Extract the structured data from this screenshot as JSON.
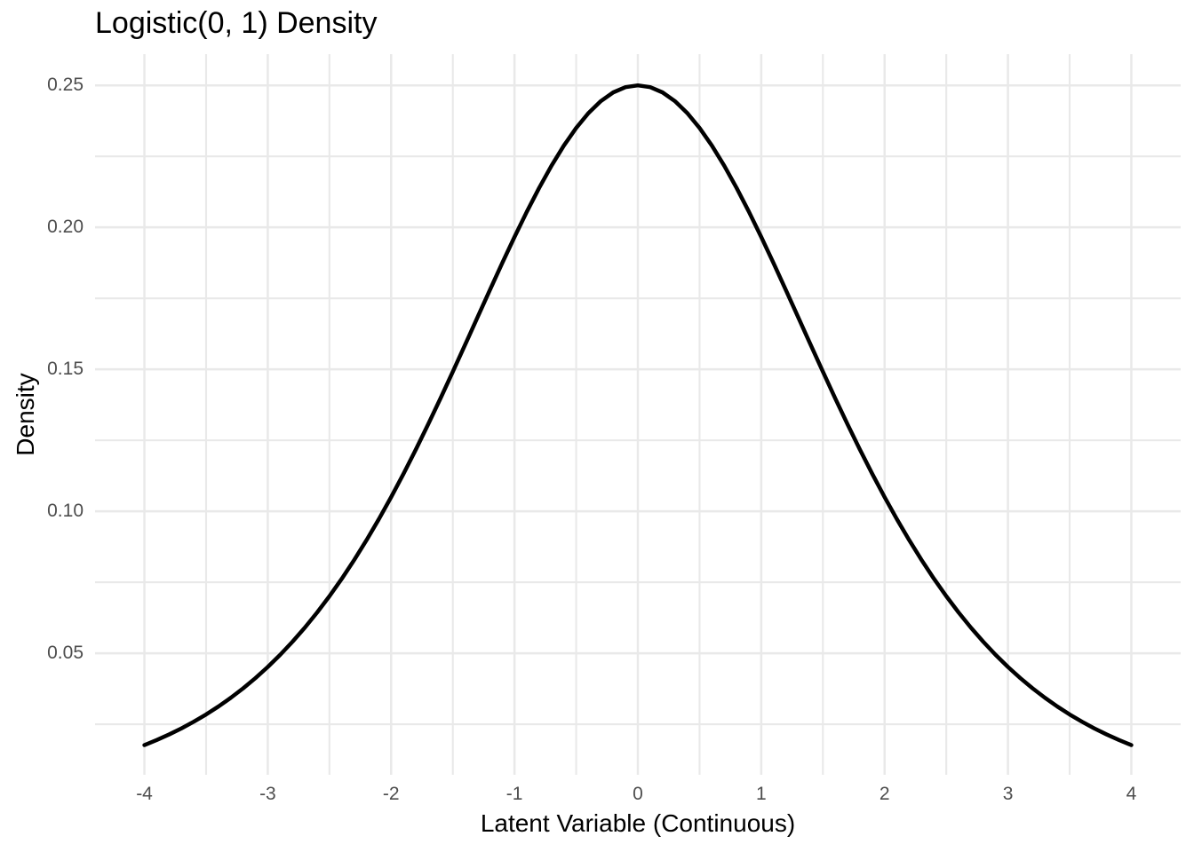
{
  "chart_data": {
    "type": "line",
    "title": "Logistic(0, 1) Density",
    "xlabel": "Latent Variable (Continuous)",
    "ylabel": "Density",
    "legend": "none",
    "grid": "major-and-minor",
    "background": "#ffffff",
    "x_range": [
      -4.4,
      4.4
    ],
    "y_range": [
      0.0072,
      0.261
    ],
    "x_ticks": {
      "values": [
        -4,
        -3,
        -2,
        -1,
        0,
        1,
        2,
        3,
        4
      ],
      "labels": [
        "-4",
        "-3",
        "-2",
        "-1",
        "0",
        "1",
        "2",
        "3",
        "4"
      ]
    },
    "x_minor": [
      -3.5,
      -2.5,
      -1.5,
      -0.5,
      0.5,
      1.5,
      2.5,
      3.5
    ],
    "y_ticks": {
      "values": [
        0.05,
        0.1,
        0.15,
        0.2,
        0.25
      ],
      "labels": [
        "0.05",
        "0.10",
        "0.15",
        "0.20",
        "0.25"
      ]
    },
    "y_minor": [
      0.025,
      0.075,
      0.125,
      0.175,
      0.225
    ],
    "colors": {
      "curve": "#000000",
      "grid_major": "#e9e9e9",
      "grid_minor": "#e9e9e9",
      "tick_label": "#4d4d4d",
      "title_text": "#000000"
    },
    "series": [
      {
        "name": "logistic-0-1-density",
        "distribution": "Logistic(location=0, scale=1)",
        "x": [
          -4.0,
          -3.9,
          -3.8,
          -3.7,
          -3.6,
          -3.5,
          -3.4,
          -3.3,
          -3.2,
          -3.1,
          -3.0,
          -2.9,
          -2.8,
          -2.7,
          -2.6,
          -2.5,
          -2.4,
          -2.3,
          -2.2,
          -2.1,
          -2.0,
          -1.9,
          -1.8,
          -1.7,
          -1.6,
          -1.5,
          -1.4,
          -1.3,
          -1.2,
          -1.1,
          -1.0,
          -0.9,
          -0.8,
          -0.7,
          -0.6,
          -0.5,
          -0.4,
          -0.3,
          -0.2,
          -0.1,
          0.0,
          0.1,
          0.2,
          0.3,
          0.4,
          0.5,
          0.6,
          0.7,
          0.8,
          0.9,
          1.0,
          1.1,
          1.2,
          1.3,
          1.4,
          1.5,
          1.6,
          1.7,
          1.8,
          1.9,
          2.0,
          2.1,
          2.2,
          2.3,
          2.4,
          2.5,
          2.6,
          2.7,
          2.8,
          2.9,
          3.0,
          3.1,
          3.2,
          3.3,
          3.4,
          3.5,
          3.6,
          3.7,
          3.8,
          3.9,
          4.0
        ],
        "y": [
          0.01766,
          0.01945,
          0.0214,
          0.02354,
          0.02589,
          0.02845,
          0.03125,
          0.03431,
          0.03763,
          0.04125,
          0.04518,
          0.04943,
          0.05404,
          0.05901,
          0.06436,
          0.0701,
          0.07625,
          0.08282,
          0.0898,
          0.0972,
          0.10499,
          0.11318,
          0.12173,
          0.13061,
          0.13976,
          0.14915,
          0.15868,
          0.1683,
          0.17789,
          0.18737,
          0.19661,
          0.2055,
          0.21391,
          0.22171,
          0.22878,
          0.235,
          0.24026,
          0.24446,
          0.24752,
          0.24938,
          0.25,
          0.24938,
          0.24752,
          0.24446,
          0.24026,
          0.235,
          0.22878,
          0.22171,
          0.21391,
          0.2055,
          0.19661,
          0.18737,
          0.17789,
          0.1683,
          0.15868,
          0.14915,
          0.13976,
          0.13061,
          0.12173,
          0.11318,
          0.10499,
          0.0972,
          0.0898,
          0.08282,
          0.07625,
          0.0701,
          0.06436,
          0.05901,
          0.05404,
          0.04943,
          0.04518,
          0.04125,
          0.03763,
          0.03431,
          0.03125,
          0.02845,
          0.02589,
          0.02354,
          0.0214,
          0.01945,
          0.01766
        ]
      }
    ]
  }
}
